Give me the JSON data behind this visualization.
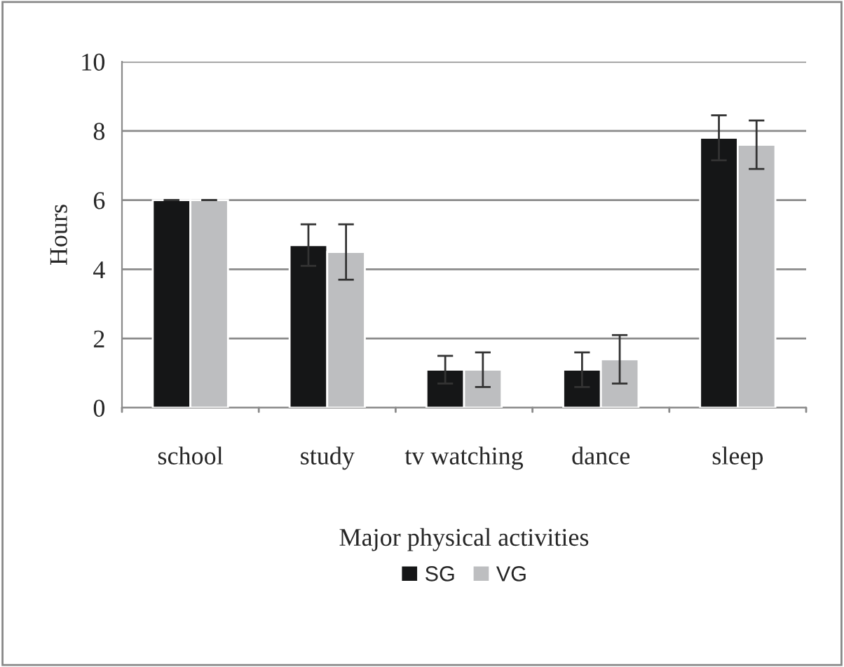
{
  "chart_data": {
    "type": "bar",
    "xlabel": "Major physical activities",
    "ylabel": "Hours",
    "categories": [
      "school",
      "study",
      "tv watching",
      "dance",
      "sleep"
    ],
    "series": [
      {
        "name": "SG",
        "color": "#151617",
        "values": [
          6.0,
          4.7,
          1.1,
          1.1,
          7.8
        ],
        "errors": [
          0,
          0.6,
          0.4,
          0.5,
          0.65
        ]
      },
      {
        "name": "VG",
        "color": "#bdbec0",
        "values": [
          6.0,
          4.5,
          1.1,
          1.4,
          7.6
        ],
        "errors": [
          0,
          0.8,
          0.5,
          0.7,
          0.7
        ]
      }
    ],
    "ylim": [
      0,
      10
    ],
    "yticks": [
      0,
      2,
      4,
      6,
      8,
      10
    ],
    "grid": "y",
    "legend": "bottom"
  }
}
